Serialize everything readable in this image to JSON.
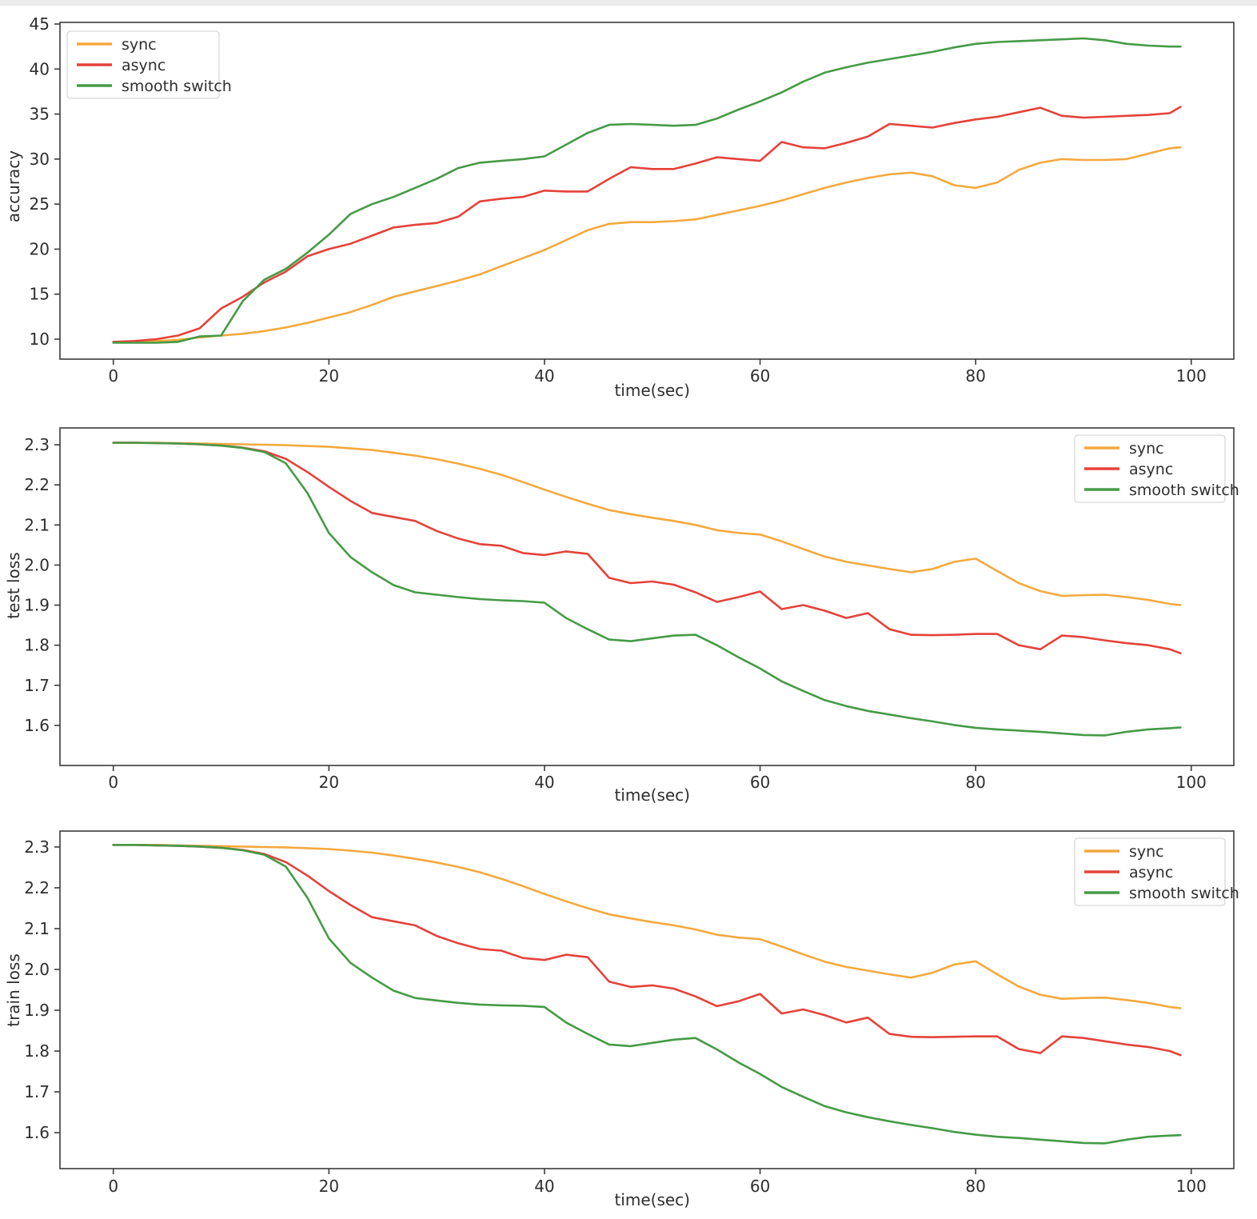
{
  "page": {
    "background": "#ffffff",
    "top_strip_color": "#ececec"
  },
  "colors": {
    "sync": "#f4a93d",
    "async": "#e5423a",
    "smooth_switch": "#459b46",
    "axis": "#3b3b3b",
    "text": "#2e2e2e",
    "legend_border": "#d8d8d8"
  },
  "chart_data": [
    {
      "type": "line",
      "title": "",
      "xlabel": "time(sec)",
      "ylabel": "accuracy",
      "xlim": [
        -4.95,
        103.95
      ],
      "ylim": [
        7.78,
        45.18
      ],
      "xticks": [
        0,
        20,
        40,
        60,
        80,
        100
      ],
      "yticks": [
        10,
        15,
        20,
        25,
        30,
        35,
        40,
        45
      ],
      "grid": false,
      "legend_position": "upper-left",
      "legend_entries": [
        "sync",
        "async",
        "smooth switch"
      ],
      "x": [
        0,
        2,
        4,
        6,
        8,
        10,
        12,
        14,
        16,
        18,
        20,
        22,
        24,
        26,
        28,
        30,
        32,
        34,
        36,
        38,
        40,
        42,
        44,
        46,
        48,
        50,
        52,
        54,
        56,
        58,
        60,
        62,
        64,
        66,
        68,
        70,
        72,
        74,
        76,
        78,
        80,
        82,
        84,
        86,
        88,
        90,
        92,
        94,
        96,
        98,
        99
      ],
      "series": [
        {
          "name": "sync",
          "color": "#f4a93d",
          "values": [
            9.7,
            9.7,
            9.8,
            9.9,
            10.2,
            10.4,
            10.6,
            10.9,
            11.3,
            11.8,
            12.4,
            13.0,
            13.8,
            14.7,
            15.3,
            15.9,
            16.5,
            17.2,
            18.1,
            19.0,
            19.9,
            21.0,
            22.1,
            22.8,
            23.0,
            23.0,
            23.1,
            23.3,
            23.8,
            24.3,
            24.8,
            25.4,
            26.1,
            26.8,
            27.4,
            27.9,
            28.3,
            28.5,
            28.1,
            27.1,
            26.8,
            27.4,
            28.8,
            29.6,
            30.0,
            29.9,
            29.9,
            30.0,
            30.6,
            31.2,
            31.3
          ]
        },
        {
          "name": "async",
          "color": "#e5423a",
          "values": [
            9.7,
            9.8,
            10.0,
            10.4,
            11.2,
            13.4,
            14.7,
            16.3,
            17.5,
            19.2,
            20.0,
            20.6,
            21.5,
            22.4,
            22.7,
            22.9,
            23.6,
            25.3,
            25.6,
            25.8,
            26.5,
            26.4,
            26.4,
            27.8,
            29.1,
            28.9,
            28.9,
            29.5,
            30.2,
            30.0,
            29.8,
            31.9,
            31.3,
            31.2,
            31.8,
            32.5,
            33.9,
            33.7,
            33.5,
            34.0,
            34.4,
            34.7,
            35.2,
            35.7,
            34.8,
            34.6,
            34.7,
            34.8,
            34.9,
            35.1,
            35.8
          ]
        },
        {
          "name": "smooth switch",
          "color": "#459b46",
          "values": [
            9.6,
            9.6,
            9.6,
            9.7,
            10.3,
            10.4,
            14.2,
            16.6,
            17.8,
            19.6,
            21.6,
            23.9,
            25.0,
            25.8,
            26.8,
            27.8,
            29.0,
            29.6,
            29.8,
            30.0,
            30.3,
            31.6,
            32.9,
            33.8,
            33.9,
            33.8,
            33.7,
            33.8,
            34.5,
            35.5,
            36.4,
            37.4,
            38.6,
            39.6,
            40.2,
            40.7,
            41.1,
            41.5,
            41.9,
            42.4,
            42.8,
            43.0,
            43.1,
            43.2,
            43.3,
            43.4,
            43.2,
            42.8,
            42.6,
            42.5,
            42.5
          ]
        }
      ]
    },
    {
      "type": "line",
      "title": "",
      "xlabel": "time(sec)",
      "ylabel": "test loss",
      "xlim": [
        -4.95,
        103.95
      ],
      "ylim": [
        1.5,
        2.342
      ],
      "xticks": [
        0,
        20,
        40,
        60,
        80,
        100
      ],
      "yticks": [
        1.6,
        1.7,
        1.8,
        1.9,
        2.0,
        2.1,
        2.2,
        2.3
      ],
      "grid": false,
      "legend_position": "upper-right",
      "legend_entries": [
        "sync",
        "async",
        "smooth switch"
      ],
      "x": [
        0,
        2,
        4,
        6,
        8,
        10,
        12,
        14,
        16,
        18,
        20,
        22,
        24,
        26,
        28,
        30,
        32,
        34,
        36,
        38,
        40,
        42,
        44,
        46,
        48,
        50,
        52,
        54,
        56,
        58,
        60,
        62,
        64,
        66,
        68,
        70,
        72,
        74,
        76,
        78,
        80,
        82,
        84,
        86,
        88,
        90,
        92,
        94,
        96,
        98,
        99
      ],
      "series": [
        {
          "name": "sync",
          "color": "#f4a93d",
          "values": [
            2.305,
            2.305,
            2.305,
            2.304,
            2.303,
            2.302,
            2.301,
            2.3,
            2.299,
            2.297,
            2.295,
            2.291,
            2.287,
            2.28,
            2.273,
            2.264,
            2.253,
            2.24,
            2.225,
            2.207,
            2.188,
            2.17,
            2.153,
            2.137,
            2.127,
            2.118,
            2.11,
            2.1,
            2.087,
            2.08,
            2.076,
            2.059,
            2.04,
            2.021,
            2.008,
            1.999,
            1.99,
            1.982,
            1.99,
            2.008,
            2.016,
            1.985,
            1.955,
            1.935,
            1.923,
            1.925,
            1.926,
            1.92,
            1.913,
            1.903,
            1.9
          ]
        },
        {
          "name": "async",
          "color": "#e5423a",
          "values": [
            2.305,
            2.305,
            2.304,
            2.303,
            2.301,
            2.298,
            2.293,
            2.284,
            2.265,
            2.232,
            2.195,
            2.16,
            2.13,
            2.12,
            2.11,
            2.085,
            2.066,
            2.052,
            2.048,
            2.03,
            2.025,
            2.034,
            2.028,
            1.968,
            1.955,
            1.959,
            1.951,
            1.932,
            1.908,
            1.92,
            1.934,
            1.89,
            1.9,
            1.886,
            1.868,
            1.88,
            1.84,
            1.826,
            1.825,
            1.826,
            1.828,
            1.828,
            1.8,
            1.79,
            1.824,
            1.82,
            1.812,
            1.805,
            1.8,
            1.79,
            1.78
          ]
        },
        {
          "name": "smooth switch",
          "color": "#459b46",
          "values": [
            2.305,
            2.305,
            2.304,
            2.303,
            2.301,
            2.298,
            2.292,
            2.282,
            2.254,
            2.18,
            2.08,
            2.02,
            1.982,
            1.95,
            1.932,
            1.926,
            1.92,
            1.915,
            1.912,
            1.91,
            1.906,
            1.868,
            1.84,
            1.814,
            1.81,
            1.817,
            1.824,
            1.826,
            1.8,
            1.77,
            1.742,
            1.71,
            1.686,
            1.663,
            1.648,
            1.636,
            1.627,
            1.618,
            1.61,
            1.601,
            1.594,
            1.59,
            1.587,
            1.584,
            1.58,
            1.576,
            1.575,
            1.584,
            1.59,
            1.593,
            1.595
          ]
        }
      ]
    },
    {
      "type": "line",
      "title": "",
      "xlabel": "time(sec)",
      "ylabel": "train loss",
      "xlim": [
        -4.95,
        103.95
      ],
      "ylim": [
        1.512,
        2.339
      ],
      "xticks": [
        0,
        20,
        40,
        60,
        80,
        100
      ],
      "yticks": [
        1.6,
        1.7,
        1.8,
        1.9,
        2.0,
        2.1,
        2.2,
        2.3
      ],
      "grid": false,
      "legend_position": "upper-right",
      "legend_entries": [
        "sync",
        "async",
        "smooth switch"
      ],
      "x": [
        0,
        2,
        4,
        6,
        8,
        10,
        12,
        14,
        16,
        18,
        20,
        22,
        24,
        26,
        28,
        30,
        32,
        34,
        36,
        38,
        40,
        42,
        44,
        46,
        48,
        50,
        52,
        54,
        56,
        58,
        60,
        62,
        64,
        66,
        68,
        70,
        72,
        74,
        76,
        78,
        80,
        82,
        84,
        86,
        88,
        90,
        92,
        94,
        96,
        98,
        99
      ],
      "series": [
        {
          "name": "sync",
          "color": "#f4a93d",
          "values": [
            2.305,
            2.305,
            2.305,
            2.304,
            2.303,
            2.302,
            2.301,
            2.3,
            2.299,
            2.297,
            2.295,
            2.291,
            2.286,
            2.279,
            2.271,
            2.262,
            2.251,
            2.238,
            2.222,
            2.204,
            2.185,
            2.167,
            2.15,
            2.135,
            2.125,
            2.116,
            2.108,
            2.098,
            2.085,
            2.078,
            2.074,
            2.056,
            2.037,
            2.019,
            2.006,
            1.997,
            1.988,
            1.98,
            1.992,
            2.012,
            2.02,
            1.988,
            1.958,
            1.938,
            1.928,
            1.93,
            1.931,
            1.925,
            1.918,
            1.908,
            1.905
          ]
        },
        {
          "name": "async",
          "color": "#e5423a",
          "values": [
            2.305,
            2.305,
            2.304,
            2.303,
            2.301,
            2.298,
            2.293,
            2.283,
            2.263,
            2.23,
            2.192,
            2.158,
            2.128,
            2.118,
            2.108,
            2.082,
            2.064,
            2.05,
            2.046,
            2.028,
            2.023,
            2.036,
            2.03,
            1.97,
            1.957,
            1.961,
            1.953,
            1.934,
            1.91,
            1.922,
            1.94,
            1.892,
            1.902,
            1.888,
            1.87,
            1.882,
            1.842,
            1.835,
            1.834,
            1.835,
            1.836,
            1.836,
            1.805,
            1.795,
            1.836,
            1.832,
            1.824,
            1.816,
            1.81,
            1.8,
            1.79
          ]
        },
        {
          "name": "smooth switch",
          "color": "#459b46",
          "values": [
            2.305,
            2.305,
            2.304,
            2.303,
            2.301,
            2.298,
            2.292,
            2.281,
            2.252,
            2.176,
            2.076,
            2.016,
            1.98,
            1.948,
            1.93,
            1.924,
            1.918,
            1.914,
            1.912,
            1.911,
            1.908,
            1.87,
            1.842,
            1.816,
            1.812,
            1.82,
            1.828,
            1.832,
            1.804,
            1.772,
            1.744,
            1.712,
            1.688,
            1.665,
            1.65,
            1.638,
            1.628,
            1.619,
            1.611,
            1.602,
            1.595,
            1.59,
            1.587,
            1.583,
            1.579,
            1.575,
            1.574,
            1.583,
            1.59,
            1.593,
            1.594
          ]
        }
      ]
    }
  ]
}
